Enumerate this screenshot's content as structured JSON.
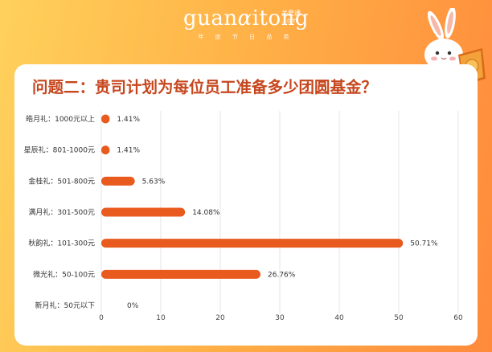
{
  "brand": {
    "logo_prefix": "guan",
    "logo_alpha": "α",
    "logo_suffix": "itong",
    "sub_cn": "关爱通",
    "sub_com": ".com",
    "slogan": "年 度 节 日 品 类"
  },
  "title": "问题二：贵司计划为每位员工准备多少团圆基金？",
  "colors": {
    "bar": "#e85a1e",
    "title": "#c6471e",
    "grid": "#e4e4e4"
  },
  "chart_data": {
    "type": "bar",
    "orientation": "horizontal",
    "title": "问题二：贵司计划为每位员工准备多少团圆基金？",
    "categories": [
      "皓月礼：1000元以上",
      "星辰礼：801-1000元",
      "金桂礼：501-800元",
      "满月礼：301-500元",
      "秋韵礼：101-300元",
      "微光礼：50-100元",
      "新月礼：50元以下"
    ],
    "values": [
      1.41,
      1.41,
      5.63,
      14.08,
      50.71,
      26.76,
      0
    ],
    "value_labels": [
      "1.41%",
      "1.41%",
      "5.63%",
      "14.08%",
      "50.71%",
      "26.76%",
      "0%"
    ],
    "xlim": [
      0,
      60
    ],
    "xticks": [
      0,
      10,
      20,
      30,
      40,
      50,
      60
    ],
    "grid": true,
    "unit": "%"
  }
}
